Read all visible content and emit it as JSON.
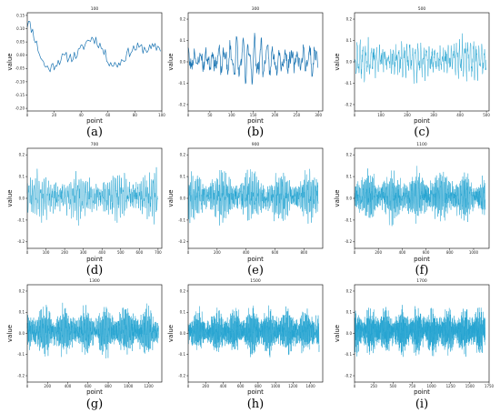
{
  "chart_data": [
    {
      "type": "line",
      "caption": "(a)",
      "title": "100",
      "xlabel": "point",
      "ylabel": "value",
      "n": 100,
      "seed": 11,
      "freq": 0.14,
      "amp": 0.11,
      "noise": 0.02,
      "xlim": [
        0,
        100
      ],
      "ylim": [
        -0.21,
        0.16
      ],
      "xticks": [
        0,
        20,
        40,
        60,
        80,
        100
      ],
      "yticks": [
        -0.2,
        -0.15,
        -0.1,
        -0.05,
        0.0,
        0.05,
        0.1,
        0.15
      ],
      "ytick_labels": [
        "-0.20",
        "-0.15",
        "-0.10",
        "-0.05",
        "0.00",
        "0.05",
        "0.10",
        "0.15"
      ]
    },
    {
      "type": "line",
      "caption": "(b)",
      "title": "300",
      "xlabel": "point",
      "ylabel": "value",
      "n": 300,
      "seed": 23,
      "freq": 0.45,
      "amp": 0.1,
      "noise": 0.03,
      "xlim": [
        0,
        310
      ],
      "ylim": [
        -0.23,
        0.23
      ],
      "xticks": [
        0,
        50,
        100,
        150,
        200,
        250,
        300
      ],
      "yticks": [
        -0.2,
        -0.1,
        0.0,
        0.1,
        0.2
      ],
      "ytick_labels": [
        "-0.2",
        "-0.1",
        "0.0",
        "0.1",
        "0.2"
      ]
    },
    {
      "type": "line",
      "caption": "(c)",
      "title": "500",
      "xlabel": "point",
      "ylabel": "value",
      "n": 500,
      "seed": 37,
      "freq": 0.6,
      "amp": 0.09,
      "noise": 0.035,
      "xlim": [
        0,
        510
      ],
      "ylim": [
        -0.23,
        0.23
      ],
      "xticks": [
        0,
        100,
        200,
        300,
        400,
        500
      ],
      "yticks": [
        -0.2,
        -0.1,
        0.0,
        0.1,
        0.2
      ],
      "ytick_labels": [
        "-0.2",
        "-0.1",
        "0.0",
        "0.1",
        "0.2"
      ]
    },
    {
      "type": "line",
      "caption": "(d)",
      "title": "700",
      "xlabel": "point",
      "ylabel": "value",
      "n": 700,
      "seed": 41,
      "freq": 0.7,
      "amp": 0.1,
      "noise": 0.035,
      "xlim": [
        0,
        720
      ],
      "ylim": [
        -0.23,
        0.23
      ],
      "xticks": [
        0,
        100,
        200,
        300,
        400,
        500,
        600,
        700
      ],
      "yticks": [
        -0.2,
        -0.1,
        0.0,
        0.1,
        0.2
      ],
      "ytick_labels": [
        "-0.2",
        "-0.1",
        "0.0",
        "0.1",
        "0.2"
      ]
    },
    {
      "type": "line",
      "caption": "(e)",
      "title": "900",
      "xlabel": "point",
      "ylabel": "value",
      "n": 900,
      "seed": 53,
      "freq": 0.8,
      "amp": 0.1,
      "noise": 0.035,
      "xlim": [
        0,
        930
      ],
      "ylim": [
        -0.23,
        0.23
      ],
      "xticks": [
        0,
        200,
        400,
        600,
        800
      ],
      "yticks": [
        -0.2,
        -0.1,
        0.0,
        0.1,
        0.2
      ],
      "ytick_labels": [
        "-0.2",
        "-0.1",
        "0.0",
        "0.1",
        "0.2"
      ]
    },
    {
      "type": "line",
      "caption": "(f)",
      "title": "1100",
      "xlabel": "point",
      "ylabel": "value",
      "n": 1100,
      "seed": 67,
      "freq": 0.85,
      "amp": 0.1,
      "noise": 0.035,
      "xlim": [
        0,
        1130
      ],
      "ylim": [
        -0.23,
        0.23
      ],
      "xticks": [
        0,
        200,
        400,
        600,
        800,
        1000
      ],
      "yticks": [
        -0.2,
        -0.1,
        0.0,
        0.1,
        0.2
      ],
      "ytick_labels": [
        "-0.2",
        "-0.1",
        "0.0",
        "0.1",
        "0.2"
      ]
    },
    {
      "type": "line",
      "caption": "(g)",
      "title": "1300",
      "xlabel": "point",
      "ylabel": "value",
      "n": 1300,
      "seed": 71,
      "freq": 0.9,
      "amp": 0.1,
      "noise": 0.035,
      "xlim": [
        0,
        1330
      ],
      "ylim": [
        -0.23,
        0.23
      ],
      "xticks": [
        0,
        200,
        400,
        600,
        800,
        1000,
        1200
      ],
      "yticks": [
        -0.2,
        -0.1,
        0.0,
        0.1,
        0.2
      ],
      "ytick_labels": [
        "-0.2",
        "-0.1",
        "0.0",
        "0.1",
        "0.2"
      ]
    },
    {
      "type": "line",
      "caption": "(h)",
      "title": "1500",
      "xlabel": "point",
      "ylabel": "value",
      "n": 1500,
      "seed": 83,
      "freq": 0.95,
      "amp": 0.09,
      "noise": 0.035,
      "xlim": [
        0,
        1540
      ],
      "ylim": [
        -0.23,
        0.23
      ],
      "xticks": [
        0,
        200,
        400,
        600,
        800,
        1000,
        1200,
        1400
      ],
      "yticks": [
        -0.2,
        -0.1,
        0.0,
        0.1,
        0.2
      ],
      "ytick_labels": [
        "-0.2",
        "-0.1",
        "0.0",
        "0.1",
        "0.2"
      ]
    },
    {
      "type": "line",
      "caption": "(i)",
      "title": "1700",
      "xlabel": "point",
      "ylabel": "value",
      "n": 1700,
      "seed": 97,
      "freq": 1.0,
      "amp": 0.09,
      "noise": 0.035,
      "xlim": [
        0,
        1750
      ],
      "ylim": [
        -0.23,
        0.23
      ],
      "xticks": [
        0,
        250,
        500,
        750,
        1000,
        1250,
        1500,
        1750
      ],
      "yticks": [
        -0.2,
        -0.1,
        0.0,
        0.1,
        0.2
      ],
      "ytick_labels": [
        "-0.2",
        "-0.1",
        "0.0",
        "0.1",
        "0.2"
      ]
    }
  ],
  "colors": {
    "line": "#1f77b4",
    "line_dense": "#23a3d0",
    "axis": "#000000"
  }
}
